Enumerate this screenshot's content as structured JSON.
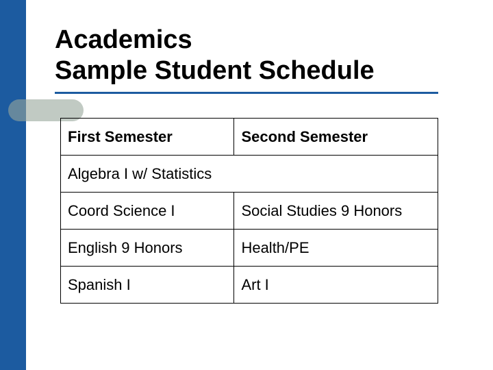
{
  "theme": {
    "sidebar_color": "#1c5ba0",
    "accent_pill_color": "#97a79b",
    "background": "#ffffff",
    "title_color": "#000000",
    "text_color": "#000000",
    "border_color": "#000000",
    "underline_color": "#1c5ba0"
  },
  "title": {
    "line1": "Academics",
    "line2": "Sample Student Schedule",
    "font_size": 38,
    "font_weight": 700
  },
  "table": {
    "font_size": 22,
    "columns": [
      {
        "label": "First Semester"
      },
      {
        "label": "Second Semester"
      }
    ],
    "rows": [
      {
        "span": true,
        "cells": [
          "Algebra I w/ Statistics"
        ]
      },
      {
        "span": false,
        "cells": [
          "Coord Science I",
          "Social Studies 9 Honors"
        ]
      },
      {
        "span": false,
        "cells": [
          "English 9 Honors",
          "Health/PE"
        ]
      },
      {
        "span": false,
        "cells": [
          "Spanish I",
          "Art I"
        ]
      }
    ]
  }
}
